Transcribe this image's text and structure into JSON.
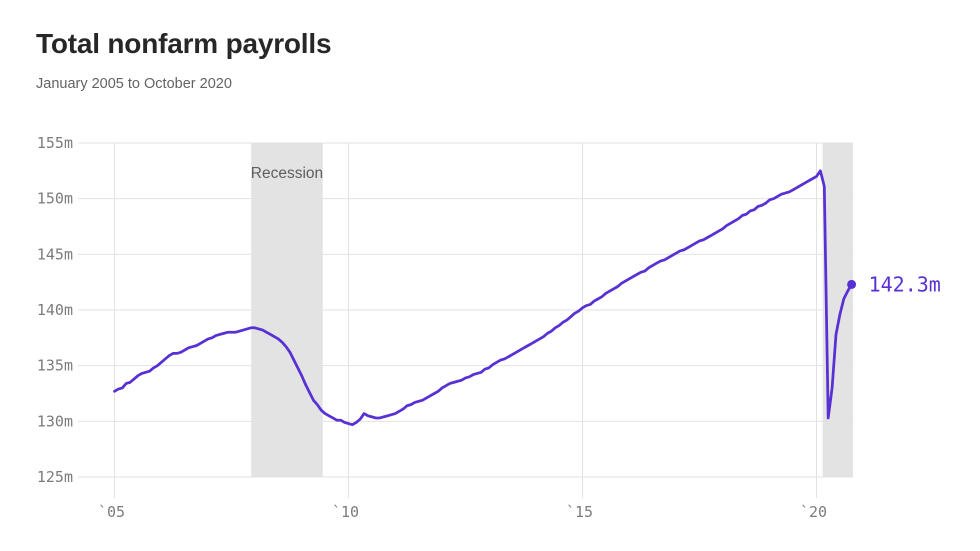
{
  "header": {
    "title": "Total nonfarm payrolls",
    "subtitle": "January 2005 to October 2020"
  },
  "colors": {
    "line": "#5830d4",
    "recession_band": "#e3e3e3",
    "gridline": "#e2e2e2",
    "axis_text": "#7b7b7b",
    "annotation_text": "#5e5e5e",
    "title_text": "#272727",
    "subtitle_text": "#636363"
  },
  "chart_data": {
    "type": "line",
    "title": "Total nonfarm payrolls",
    "subtitle": "January 2005 to October 2020",
    "frequency": "monthly",
    "x_start_year": 2005,
    "x_start_month": 1,
    "xlim": [
      2004.22,
      2020.78
    ],
    "ylim": [
      125,
      155
    ],
    "grid": true,
    "y_ticks": [
      {
        "value": 155,
        "label": "155m"
      },
      {
        "value": 150,
        "label": "150m"
      },
      {
        "value": 145,
        "label": "145m"
      },
      {
        "value": 140,
        "label": "140m"
      },
      {
        "value": 135,
        "label": "135m"
      },
      {
        "value": 130,
        "label": "130m"
      },
      {
        "value": 125,
        "label": "125m"
      }
    ],
    "x_ticks": [
      {
        "value": 2005,
        "label": "`05"
      },
      {
        "value": 2010,
        "label": "`10"
      },
      {
        "value": 2015,
        "label": "`15"
      },
      {
        "value": 2020,
        "label": "`20"
      }
    ],
    "recessions": [
      {
        "start": 2007.92,
        "end": 2009.45,
        "label": "Recession"
      },
      {
        "start": 2020.13,
        "end": 2020.78,
        "label": ""
      }
    ],
    "end_label": "142.3m",
    "series": [
      {
        "name": "Total nonfarm payrolls",
        "values": [
          132.7,
          132.9,
          133.0,
          133.4,
          133.5,
          133.8,
          134.1,
          134.3,
          134.4,
          134.5,
          134.8,
          135.0,
          135.3,
          135.6,
          135.9,
          136.1,
          136.1,
          136.2,
          136.4,
          136.6,
          136.7,
          136.8,
          137.0,
          137.2,
          137.4,
          137.5,
          137.7,
          137.8,
          137.9,
          138.0,
          138.0,
          138.0,
          138.1,
          138.2,
          138.3,
          138.4,
          138.4,
          138.3,
          138.2,
          138.0,
          137.8,
          137.6,
          137.4,
          137.1,
          136.7,
          136.2,
          135.5,
          134.8,
          134.1,
          133.3,
          132.6,
          131.9,
          131.5,
          131.0,
          130.7,
          130.5,
          130.3,
          130.1,
          130.1,
          129.9,
          129.8,
          129.7,
          129.9,
          130.2,
          130.7,
          130.5,
          130.4,
          130.3,
          130.3,
          130.4,
          130.5,
          130.6,
          130.7,
          130.9,
          131.1,
          131.4,
          131.5,
          131.7,
          131.8,
          131.9,
          132.1,
          132.3,
          132.5,
          132.7,
          133.0,
          133.2,
          133.4,
          133.5,
          133.6,
          133.7,
          133.9,
          134.0,
          134.2,
          134.3,
          134.4,
          134.7,
          134.8,
          135.1,
          135.3,
          135.5,
          135.6,
          135.8,
          136.0,
          136.2,
          136.4,
          136.6,
          136.8,
          137.0,
          137.2,
          137.4,
          137.6,
          137.9,
          138.1,
          138.4,
          138.6,
          138.9,
          139.1,
          139.4,
          139.7,
          139.9,
          140.2,
          140.4,
          140.5,
          140.8,
          141.0,
          141.2,
          141.5,
          141.7,
          141.9,
          142.1,
          142.4,
          142.6,
          142.8,
          143.0,
          143.2,
          143.4,
          143.5,
          143.8,
          144.0,
          144.2,
          144.4,
          144.5,
          144.7,
          144.9,
          145.1,
          145.3,
          145.4,
          145.6,
          145.8,
          146.0,
          146.2,
          146.3,
          146.5,
          146.7,
          146.9,
          147.1,
          147.3,
          147.6,
          147.8,
          148.0,
          148.2,
          148.5,
          148.6,
          148.9,
          149.0,
          149.3,
          149.4,
          149.6,
          149.9,
          150.0,
          150.2,
          150.4,
          150.5,
          150.6,
          150.8,
          151.0,
          151.2,
          151.4,
          151.6,
          151.8,
          152.0,
          152.5,
          151.1,
          130.3,
          133.0,
          137.8,
          139.6,
          141.0,
          141.7,
          142.3
        ]
      }
    ]
  }
}
